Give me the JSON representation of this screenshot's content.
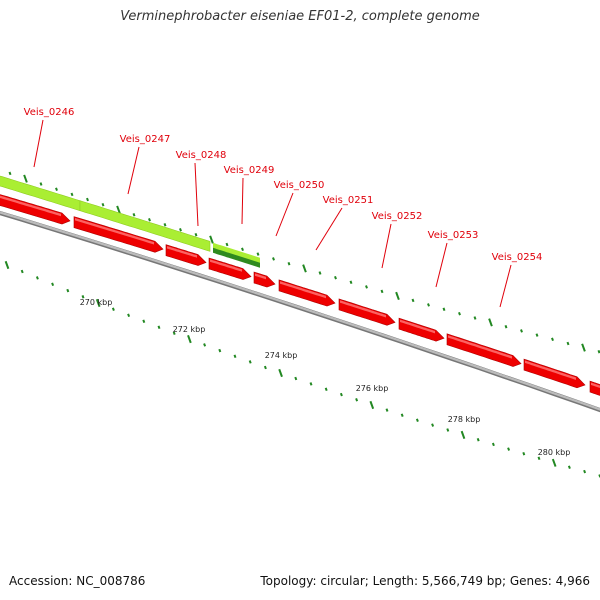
{
  "header": {
    "title": "Verminephrobacter eiseniae EF01-2, complete genome"
  },
  "footer": {
    "accession": "Accession: NC_008786",
    "summary": "Topology: circular; Length: 5,566,749 bp; Genes: 4,966"
  },
  "colors": {
    "cds": "#ee0000",
    "gene_light": "#aaee33",
    "gene_dark": "#2f8a1f",
    "label": "#e0000b",
    "tick": "#228822",
    "backbone": "#888888"
  },
  "gene_labels": [
    "Veis_0246",
    "Veis_0247",
    "Veis_0248",
    "Veis_0249",
    "Veis_0250",
    "Veis_0251",
    "Veis_0252",
    "Veis_0253",
    "Veis_0254"
  ],
  "scale_labels": [
    "270 kbp",
    "272 kbp",
    "274 kbp",
    "276 kbp",
    "278 kbp",
    "280 kbp"
  ]
}
